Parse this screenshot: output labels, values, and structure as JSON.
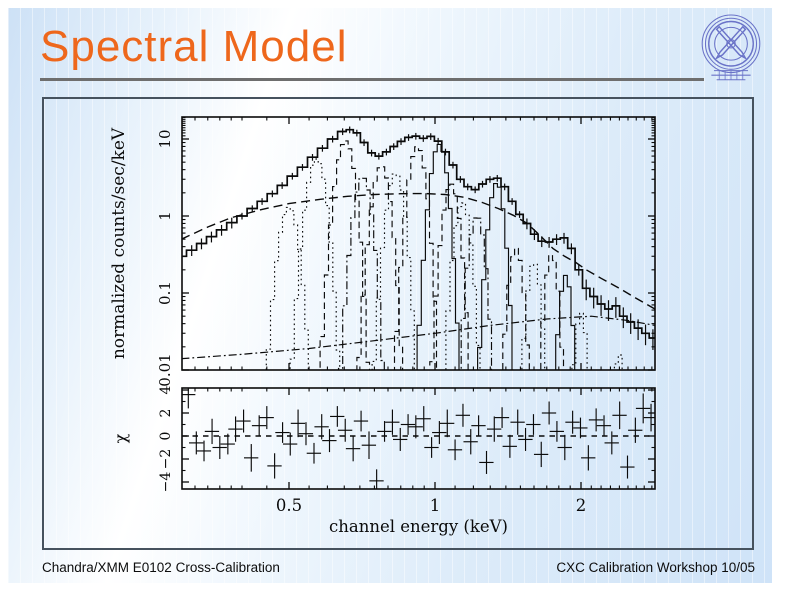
{
  "slide": {
    "title": "Spectral Model",
    "footer_left": "Chandra/XMM E0102 Cross-Calibration",
    "footer_right": "CXC Calibration Workshop 10/05",
    "logo_name": "cxc-chandra-logo",
    "colors": {
      "title_orange": "#ee671c",
      "underline_gray": "#6e6e6e",
      "background_blue": "#d8e8f9",
      "frame_slate": "#46525e",
      "logo_blue": "#6a73c8",
      "plot_ink": "#0a0a0a"
    }
  },
  "chart_data": {
    "type": "line",
    "description": "XSPEC-style spectral fit: data with error bars, total model histogram, Gaussian line components, continuum curves (top, log-log) and chi residuals (bottom)",
    "xlabel": "channel energy (keV)",
    "ylabel_top": "normalized counts/sec/keV",
    "ylabel_bottom": "χ",
    "x_scale": "log",
    "y_scale_top": "log",
    "xlim": [
      0.3,
      2.84
    ],
    "ylim_top": [
      0.01,
      19.3
    ],
    "ylim_bottom": [
      -4.6,
      4.2
    ],
    "x_ticks": [
      {
        "v": 0.5,
        "label": "0.5"
      },
      {
        "v": 1,
        "label": "1"
      },
      {
        "v": 2,
        "label": "2"
      }
    ],
    "x_minor_ticks": [
      0.32,
      0.34,
      0.36,
      0.38,
      0.4,
      0.45,
      0.55,
      0.6,
      0.65,
      0.7,
      0.75,
      0.8,
      0.85,
      0.9,
      0.95,
      1.1,
      1.2,
      1.3,
      1.4,
      1.5,
      1.6,
      1.7,
      1.8,
      1.9,
      2.1,
      2.2,
      2.3,
      2.4,
      2.5,
      2.6,
      2.7,
      2.8
    ],
    "y_ticks_top": [
      {
        "v": 0.01,
        "label": "0.01"
      },
      {
        "v": 0.1,
        "label": "0.1"
      },
      {
        "v": 1,
        "label": "1"
      },
      {
        "v": 10,
        "label": "10"
      }
    ],
    "y_ticks_bottom": [
      {
        "v": -4,
        "label": "−4"
      },
      {
        "v": -2,
        "label": "−2"
      },
      {
        "v": 0,
        "label": "0"
      },
      {
        "v": 2,
        "label": "2"
      },
      {
        "v": 4,
        "label": "4"
      }
    ],
    "y_minor_ticks_bottom": [
      -3,
      -1,
      1,
      3
    ],
    "total_model": [
      [
        0.3,
        0.3
      ],
      [
        0.315,
        0.36
      ],
      [
        0.33,
        0.44
      ],
      [
        0.346,
        0.54
      ],
      [
        0.363,
        0.66
      ],
      [
        0.381,
        0.82
      ],
      [
        0.4,
        1.0
      ],
      [
        0.42,
        1.25
      ],
      [
        0.44,
        1.55
      ],
      [
        0.462,
        1.95
      ],
      [
        0.484,
        2.5
      ],
      [
        0.508,
        3.3
      ],
      [
        0.533,
        4.3
      ],
      [
        0.559,
        5.8
      ],
      [
        0.586,
        7.6
      ],
      [
        0.615,
        10.0
      ],
      [
        0.645,
        12.5
      ],
      [
        0.667,
        13.2
      ],
      [
        0.69,
        12.0
      ],
      [
        0.714,
        9.0
      ],
      [
        0.74,
        6.6
      ],
      [
        0.766,
        6.0
      ],
      [
        0.794,
        6.8
      ],
      [
        0.822,
        8.0
      ],
      [
        0.851,
        9.3
      ],
      [
        0.882,
        10.5
      ],
      [
        0.913,
        10.9
      ],
      [
        0.946,
        10.2
      ],
      [
        0.98,
        10.8
      ],
      [
        1.015,
        9.4
      ],
      [
        1.051,
        6.8
      ],
      [
        1.089,
        4.6
      ],
      [
        1.128,
        3.0
      ],
      [
        1.168,
        2.4
      ],
      [
        1.21,
        2.2
      ],
      [
        1.253,
        2.6
      ],
      [
        1.298,
        3.0
      ],
      [
        1.344,
        3.1
      ],
      [
        1.392,
        2.4
      ],
      [
        1.442,
        1.55
      ],
      [
        1.494,
        1.05
      ],
      [
        1.547,
        0.8
      ],
      [
        1.603,
        0.58
      ],
      [
        1.66,
        0.47
      ],
      [
        1.719,
        0.46
      ],
      [
        1.781,
        0.5
      ],
      [
        1.845,
        0.52
      ],
      [
        1.911,
        0.38
      ],
      [
        1.979,
        0.2
      ],
      [
        2.05,
        0.115
      ],
      [
        2.124,
        0.09
      ],
      [
        2.2,
        0.072
      ],
      [
        2.279,
        0.062
      ],
      [
        2.36,
        0.068
      ],
      [
        2.445,
        0.05
      ],
      [
        2.532,
        0.042
      ],
      [
        2.623,
        0.035
      ],
      [
        2.717,
        0.03
      ],
      [
        2.814,
        0.026
      ]
    ],
    "continuum": [
      [
        0.3,
        0.5
      ],
      [
        0.34,
        0.72
      ],
      [
        0.38,
        0.95
      ],
      [
        0.44,
        1.22
      ],
      [
        0.5,
        1.45
      ],
      [
        0.58,
        1.65
      ],
      [
        0.66,
        1.8
      ],
      [
        0.75,
        1.9
      ],
      [
        0.85,
        1.95
      ],
      [
        0.95,
        1.96
      ],
      [
        1.05,
        1.9
      ],
      [
        1.15,
        1.75
      ],
      [
        1.25,
        1.5
      ],
      [
        1.35,
        1.25
      ],
      [
        1.45,
        1.02
      ],
      [
        1.55,
        0.8
      ],
      [
        1.65,
        0.55
      ],
      [
        1.75,
        0.38
      ],
      [
        1.85,
        0.3
      ],
      [
        1.95,
        0.25
      ],
      [
        2.05,
        0.2
      ],
      [
        2.2,
        0.155
      ],
      [
        2.4,
        0.115
      ],
      [
        2.6,
        0.085
      ],
      [
        2.84,
        0.062
      ]
    ],
    "weak_continuum": [
      [
        0.3,
        0.014
      ],
      [
        0.4,
        0.016
      ],
      [
        0.55,
        0.019
      ],
      [
        0.75,
        0.024
      ],
      [
        1.0,
        0.03
      ],
      [
        1.3,
        0.038
      ],
      [
        1.7,
        0.046
      ],
      [
        2.1,
        0.05
      ],
      [
        2.5,
        0.044
      ],
      [
        2.84,
        0.038
      ]
    ],
    "components": [
      {
        "center": 0.5,
        "peak": 1.3,
        "sigma": 0.016,
        "style": "dotted"
      },
      {
        "center": 0.57,
        "peak": 5.5,
        "sigma": 0.018,
        "style": "dotted"
      },
      {
        "center": 0.654,
        "peak": 9.5,
        "sigma": 0.02,
        "style": "dash"
      },
      {
        "center": 0.71,
        "peak": 3.2,
        "sigma": 0.021,
        "style": "dashdot"
      },
      {
        "center": 0.775,
        "peak": 4.5,
        "sigma": 0.023,
        "style": "dash"
      },
      {
        "center": 0.83,
        "peak": 3.6,
        "sigma": 0.024,
        "style": "dotted"
      },
      {
        "center": 0.92,
        "peak": 8.0,
        "sigma": 0.026,
        "style": "dash"
      },
      {
        "center": 1.02,
        "peak": 8.5,
        "sigma": 0.028,
        "style": "solid"
      },
      {
        "center": 1.08,
        "peak": 2.6,
        "sigma": 0.029,
        "style": "dash"
      },
      {
        "center": 1.14,
        "peak": 1.5,
        "sigma": 0.03,
        "style": "dotted"
      },
      {
        "center": 1.22,
        "peak": 1.0,
        "sigma": 0.031,
        "style": "dashdot"
      },
      {
        "center": 1.34,
        "peak": 2.7,
        "sigma": 0.033,
        "style": "solid"
      },
      {
        "center": 1.47,
        "peak": 0.38,
        "sigma": 0.034,
        "style": "dash"
      },
      {
        "center": 1.6,
        "peak": 0.25,
        "sigma": 0.035,
        "style": "dotted"
      },
      {
        "center": 1.74,
        "peak": 0.32,
        "sigma": 0.036,
        "style": "dash"
      },
      {
        "center": 1.86,
        "peak": 0.17,
        "sigma": 0.037,
        "style": "solid"
      },
      {
        "center": 2.0,
        "peak": 0.055,
        "sigma": 0.038,
        "style": "dotted"
      },
      {
        "center": 2.4,
        "peak": 0.016,
        "sigma": 0.045,
        "style": "dotted"
      }
    ],
    "residuals": {
      "x": [
        0.31,
        0.322,
        0.334,
        0.347,
        0.36,
        0.374,
        0.388,
        0.403,
        0.418,
        0.434,
        0.45,
        0.467,
        0.485,
        0.503,
        0.522,
        0.542,
        0.563,
        0.584,
        0.606,
        0.629,
        0.653,
        0.678,
        0.704,
        0.731,
        0.758,
        0.787,
        0.817,
        0.848,
        0.88,
        0.913,
        0.948,
        0.984,
        1.021,
        1.06,
        1.1,
        1.142,
        1.185,
        1.23,
        1.277,
        1.325,
        1.375,
        1.427,
        1.481,
        1.537,
        1.596,
        1.656,
        1.719,
        1.784,
        1.852,
        1.922,
        1.995,
        2.071,
        2.149,
        2.231,
        2.315,
        2.403,
        2.494,
        2.589,
        2.687,
        2.789
      ],
      "chi": [
        3.6,
        -0.6,
        -1.3,
        0.4,
        -1.0,
        -0.7,
        0.6,
        1.3,
        -1.9,
        0.9,
        1.6,
        -2.6,
        0.3,
        -0.7,
        1.1,
        0.2,
        -1.5,
        0.8,
        -0.4,
        1.7,
        0.5,
        -1.1,
        1.3,
        -0.8,
        -3.9,
        0.4,
        1.2,
        -0.3,
        1.0,
        0.8,
        1.5,
        -1.0,
        0.3,
        1.1,
        -1.2,
        1.8,
        -0.5,
        0.9,
        -2.3,
        0.6,
        1.6,
        -0.9,
        1.2,
        -0.3,
        1.0,
        -1.6,
        2.0,
        0.4,
        -1.0,
        1.2,
        0.7,
        -1.9,
        1.4,
        0.9,
        -0.6,
        1.8,
        -2.7,
        0.5,
        2.4,
        1.6
      ],
      "err": [
        1.2,
        1.0,
        0.9,
        1.1,
        1.0,
        0.9,
        1.1,
        1.0,
        1.2,
        0.9,
        1.0,
        1.1,
        0.9,
        1.0,
        1.2,
        1.0,
        0.9,
        1.1,
        1.0,
        0.9,
        1.0,
        1.1,
        0.9,
        1.2,
        1.0,
        0.9,
        1.1,
        1.0,
        0.9,
        1.0,
        1.1,
        0.9,
        1.0,
        1.2,
        0.9,
        1.0,
        1.1,
        0.9,
        1.0,
        1.1,
        0.9,
        1.0,
        1.1,
        1.0,
        0.9,
        1.1,
        1.0,
        0.9,
        1.1,
        1.0,
        0.9,
        1.1,
        1.0,
        0.9,
        1.0,
        1.2,
        1.0,
        1.1,
        1.3,
        1.2
      ]
    },
    "zero_line": 0,
    "legend": "none",
    "grid": false
  }
}
